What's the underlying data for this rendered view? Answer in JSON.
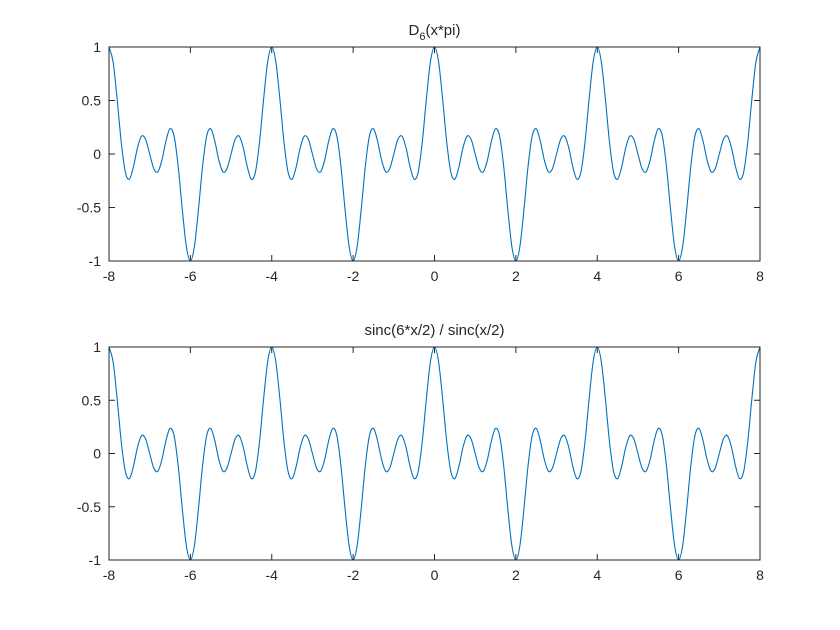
{
  "chart_data": [
    {
      "type": "line",
      "title": [
        "D",
        "6",
        "(x*pi)"
      ],
      "x": [
        -8,
        -7.9,
        -7.8,
        -7.7,
        -7.6,
        -7.5,
        -7.4,
        -7.3,
        -7.2,
        -7.1,
        -7,
        -6.9,
        -6.8,
        -6.7,
        -6.6,
        -6.5,
        -6.4,
        -6.3,
        -6.2,
        -6.1,
        -6,
        -5.9,
        -5.8,
        -5.7,
        -5.6,
        -5.5,
        -5.4,
        -5.3,
        -5.2,
        -5.1,
        -5,
        -4.9,
        -4.8,
        -4.7,
        -4.6,
        -4.5,
        -4.4,
        -4.3,
        -4.2,
        -4.1,
        -4,
        -3.9,
        -3.8,
        -3.7,
        -3.6,
        -3.5,
        -3.4,
        -3.3,
        -3.2,
        -3.1,
        -3,
        -2.9,
        -2.8,
        -2.7,
        -2.6,
        -2.5,
        -2.4,
        -2.3,
        -2.2,
        -2.1,
        -2,
        -1.9,
        -1.8,
        -1.7,
        -1.6,
        -1.5,
        -1.4,
        -1.3,
        -1.2,
        -1.1,
        -1,
        -0.9,
        -0.8,
        -0.7,
        -0.6,
        -0.5,
        -0.4,
        -0.3,
        -0.2,
        -0.1,
        0,
        0.1,
        0.2,
        0.3,
        0.4,
        0.5,
        0.6,
        0.7,
        0.8,
        0.9,
        1,
        1.1,
        1.2,
        1.3,
        1.4,
        1.5,
        1.6,
        1.7,
        1.8,
        1.9,
        2,
        2.1,
        2.2,
        2.3,
        2.4,
        2.5,
        2.6,
        2.7,
        2.8,
        2.9,
        3,
        3.1,
        3.2,
        3.3,
        3.4,
        3.5,
        3.6,
        3.7,
        3.8,
        3.9,
        4,
        4.1,
        4.2,
        4.3,
        4.4,
        4.5,
        4.6,
        4.7,
        4.8,
        4.9,
        5,
        5.1,
        5.2,
        5.3,
        5.4,
        5.5,
        5.6,
        5.7,
        5.8,
        5.9,
        6,
        6.1,
        6.2,
        6.3,
        6.4,
        6.5,
        6.6,
        6.7,
        6.8,
        6.9,
        7,
        7.1,
        7.2,
        7.3,
        7.4,
        7.5,
        7.6,
        7.7,
        7.8,
        7.9,
        8
      ],
      "series": [
        {
          "color": "#0072bd",
          "values": [
            1,
            0.862,
            0.513,
            0.1134,
            -0.1667,
            -0.2357,
            -0.1211,
            0.0578,
            0.1667,
            0.1365,
            0,
            -0.1365,
            -0.1667,
            -0.0578,
            0.1211,
            0.2357,
            0.1667,
            -0.1134,
            -0.513,
            -0.862,
            -1,
            -0.862,
            -0.513,
            -0.1134,
            0.1667,
            0.2357,
            0.1211,
            -0.0578,
            -0.1667,
            -0.1365,
            0,
            0.1365,
            0.1667,
            0.0578,
            -0.1211,
            -0.2357,
            -0.1667,
            0.1134,
            0.513,
            0.862,
            1,
            0.862,
            0.513,
            0.1134,
            -0.1667,
            -0.2357,
            -0.1211,
            0.0578,
            0.1667,
            0.1365,
            0,
            -0.1365,
            -0.1667,
            -0.0578,
            0.1211,
            0.2357,
            0.1667,
            -0.1134,
            -0.513,
            -0.862,
            -1,
            -0.862,
            -0.513,
            -0.1134,
            0.1667,
            0.2357,
            0.1211,
            -0.0578,
            -0.1667,
            -0.1365,
            0,
            0.1365,
            0.1667,
            0.0578,
            -0.1211,
            -0.2357,
            -0.1667,
            0.1134,
            0.513,
            0.862,
            1,
            0.862,
            0.513,
            0.1134,
            -0.1667,
            -0.2357,
            -0.1211,
            0.0578,
            0.1667,
            0.1365,
            0,
            -0.1365,
            -0.1667,
            -0.0578,
            0.1211,
            0.2357,
            0.1667,
            -0.1134,
            -0.513,
            -0.862,
            -1,
            -0.862,
            -0.513,
            -0.1134,
            0.1667,
            0.2357,
            0.1211,
            -0.0578,
            -0.1667,
            -0.1365,
            0,
            0.1365,
            0.1667,
            0.0578,
            -0.1211,
            -0.2357,
            -0.1667,
            0.1134,
            0.513,
            0.862,
            1,
            0.862,
            0.513,
            0.1134,
            -0.1667,
            -0.2357,
            -0.1211,
            0.0578,
            0.1667,
            0.1365,
            0,
            -0.1365,
            -0.1667,
            -0.0578,
            0.1211,
            0.2357,
            0.1667,
            -0.1134,
            -0.513,
            -0.862,
            -1,
            -0.862,
            -0.513,
            -0.1134,
            0.1667,
            0.2357,
            0.1211,
            -0.0578,
            -0.1667,
            -0.1365,
            0,
            0.1365,
            0.1667,
            0.0578,
            -0.1211,
            -0.2357,
            -0.1667,
            0.1134,
            0.513,
            0.862,
            1
          ]
        }
      ],
      "xlim": [
        -8,
        8
      ],
      "xticks": [
        -8,
        -6,
        -4,
        -2,
        0,
        2,
        4,
        6,
        8
      ],
      "ylim": [
        -1,
        1
      ],
      "yticks": [
        -1,
        -0.5,
        0,
        0.5,
        1
      ]
    },
    {
      "type": "line",
      "title": [
        "sinc(6*x/2) / sinc(x/2)"
      ],
      "x": [
        -8,
        -7.9,
        -7.8,
        -7.7,
        -7.6,
        -7.5,
        -7.4,
        -7.3,
        -7.2,
        -7.1,
        -7,
        -6.9,
        -6.8,
        -6.7,
        -6.6,
        -6.5,
        -6.4,
        -6.3,
        -6.2,
        -6.1,
        -6,
        -5.9,
        -5.8,
        -5.7,
        -5.6,
        -5.5,
        -5.4,
        -5.3,
        -5.2,
        -5.1,
        -5,
        -4.9,
        -4.8,
        -4.7,
        -4.6,
        -4.5,
        -4.4,
        -4.3,
        -4.2,
        -4.1,
        -4,
        -3.9,
        -3.8,
        -3.7,
        -3.6,
        -3.5,
        -3.4,
        -3.3,
        -3.2,
        -3.1,
        -3,
        -2.9,
        -2.8,
        -2.7,
        -2.6,
        -2.5,
        -2.4,
        -2.3,
        -2.2,
        -2.1,
        -2,
        -1.9,
        -1.8,
        -1.7,
        -1.6,
        -1.5,
        -1.4,
        -1.3,
        -1.2,
        -1.1,
        -1,
        -0.9,
        -0.8,
        -0.7,
        -0.6,
        -0.5,
        -0.4,
        -0.3,
        -0.2,
        -0.1,
        0,
        0.1,
        0.2,
        0.3,
        0.4,
        0.5,
        0.6,
        0.7,
        0.8,
        0.9,
        1,
        1.1,
        1.2,
        1.3,
        1.4,
        1.5,
        1.6,
        1.7,
        1.8,
        1.9,
        2,
        2.1,
        2.2,
        2.3,
        2.4,
        2.5,
        2.6,
        2.7,
        2.8,
        2.9,
        3,
        3.1,
        3.2,
        3.3,
        3.4,
        3.5,
        3.6,
        3.7,
        3.8,
        3.9,
        4,
        4.1,
        4.2,
        4.3,
        4.4,
        4.5,
        4.6,
        4.7,
        4.8,
        4.9,
        5,
        5.1,
        5.2,
        5.3,
        5.4,
        5.5,
        5.6,
        5.7,
        5.8,
        5.9,
        6,
        6.1,
        6.2,
        6.3,
        6.4,
        6.5,
        6.6,
        6.7,
        6.8,
        6.9,
        7,
        7.1,
        7.2,
        7.3,
        7.4,
        7.5,
        7.6,
        7.7,
        7.8,
        7.9,
        8
      ],
      "series": [
        {
          "color": "#0072bd",
          "values": [
            1,
            0.862,
            0.513,
            0.1134,
            -0.1667,
            -0.2357,
            -0.1211,
            0.0578,
            0.1667,
            0.1365,
            0,
            -0.1365,
            -0.1667,
            -0.0578,
            0.1211,
            0.2357,
            0.1667,
            -0.1134,
            -0.513,
            -0.862,
            -1,
            -0.862,
            -0.513,
            -0.1134,
            0.1667,
            0.2357,
            0.1211,
            -0.0578,
            -0.1667,
            -0.1365,
            0,
            0.1365,
            0.1667,
            0.0578,
            -0.1211,
            -0.2357,
            -0.1667,
            0.1134,
            0.513,
            0.862,
            1,
            0.862,
            0.513,
            0.1134,
            -0.1667,
            -0.2357,
            -0.1211,
            0.0578,
            0.1667,
            0.1365,
            0,
            -0.1365,
            -0.1667,
            -0.0578,
            0.1211,
            0.2357,
            0.1667,
            -0.1134,
            -0.513,
            -0.862,
            -1,
            -0.862,
            -0.513,
            -0.1134,
            0.1667,
            0.2357,
            0.1211,
            -0.0578,
            -0.1667,
            -0.1365,
            0,
            0.1365,
            0.1667,
            0.0578,
            -0.1211,
            -0.2357,
            -0.1667,
            0.1134,
            0.513,
            0.862,
            1,
            0.862,
            0.513,
            0.1134,
            -0.1667,
            -0.2357,
            -0.1211,
            0.0578,
            0.1667,
            0.1365,
            0,
            -0.1365,
            -0.1667,
            -0.0578,
            0.1211,
            0.2357,
            0.1667,
            -0.1134,
            -0.513,
            -0.862,
            -1,
            -0.862,
            -0.513,
            -0.1134,
            0.1667,
            0.2357,
            0.1211,
            -0.0578,
            -0.1667,
            -0.1365,
            0,
            0.1365,
            0.1667,
            0.0578,
            -0.1211,
            -0.2357,
            -0.1667,
            0.1134,
            0.513,
            0.862,
            1,
            0.862,
            0.513,
            0.1134,
            -0.1667,
            -0.2357,
            -0.1211,
            0.0578,
            0.1667,
            0.1365,
            0,
            -0.1365,
            -0.1667,
            -0.0578,
            0.1211,
            0.2357,
            0.1667,
            -0.1134,
            -0.513,
            -0.862,
            -1,
            -0.862,
            -0.513,
            -0.1134,
            0.1667,
            0.2357,
            0.1211,
            -0.0578,
            -0.1667,
            -0.1365,
            0,
            0.1365,
            0.1667,
            0.0578,
            -0.1211,
            -0.2357,
            -0.1667,
            0.1134,
            0.513,
            0.862,
            1
          ]
        }
      ],
      "xlim": [
        -8,
        8
      ],
      "xticks": [
        -8,
        -6,
        -4,
        -2,
        0,
        2,
        4,
        6,
        8
      ],
      "ylim": [
        -1,
        1
      ],
      "yticks": [
        -1,
        -0.5,
        0,
        0.5,
        1
      ]
    }
  ]
}
